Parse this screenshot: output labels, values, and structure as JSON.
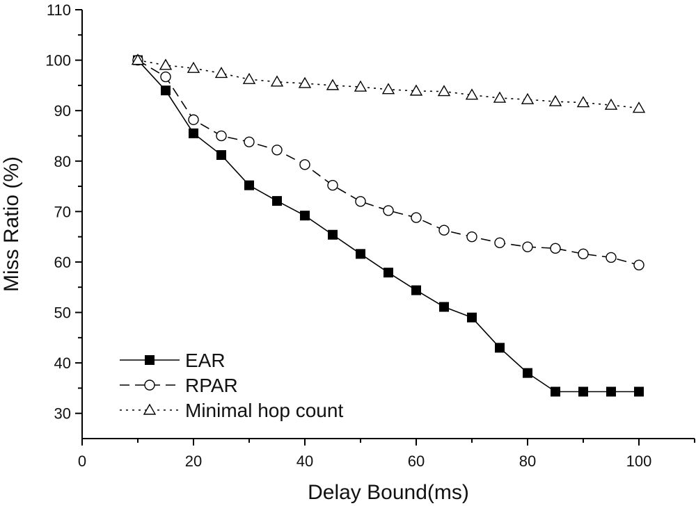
{
  "chart_data": {
    "type": "line",
    "xlabel": "Delay Bound(ms)",
    "ylabel": "Miss Ratio (%)",
    "xlim": [
      0,
      110
    ],
    "ylim": [
      25,
      110
    ],
    "x_ticks": [
      0,
      20,
      40,
      60,
      80,
      100
    ],
    "y_ticks": [
      30,
      40,
      50,
      60,
      70,
      80,
      90,
      100,
      110
    ],
    "grid": false,
    "legend_position": "bottom-left",
    "x": [
      10,
      15,
      20,
      25,
      30,
      35,
      40,
      45,
      50,
      55,
      60,
      65,
      70,
      75,
      80,
      85,
      90,
      95,
      100
    ],
    "series": [
      {
        "name": "EAR",
        "line_style": "solid",
        "marker": "filled-square",
        "color": "#000000",
        "values": [
          100,
          94,
          85.5,
          81.2,
          75.2,
          72.1,
          69.2,
          65.4,
          61.6,
          57.9,
          54.4,
          51.1,
          49,
          43,
          38,
          34.3,
          34.3,
          34.3,
          34.3
        ]
      },
      {
        "name": "RPAR",
        "line_style": "dashed",
        "marker": "open-circle",
        "color": "#000000",
        "values": [
          100,
          96.7,
          88.2,
          85,
          83.8,
          82.2,
          79.3,
          75.2,
          72,
          70.2,
          68.8,
          66.3,
          65,
          63.8,
          63,
          62.7,
          61.6,
          60.9,
          59.4
        ]
      },
      {
        "name": "Minimal hop count",
        "line_style": "dotted",
        "marker": "open-triangle",
        "color": "#000000",
        "values": [
          100,
          99,
          98.4,
          97.4,
          96.2,
          95.7,
          95.4,
          95,
          94.7,
          94.2,
          93.9,
          93.8,
          93.1,
          92.5,
          92.2,
          91.8,
          91.6,
          91.1,
          90.5
        ]
      }
    ]
  }
}
